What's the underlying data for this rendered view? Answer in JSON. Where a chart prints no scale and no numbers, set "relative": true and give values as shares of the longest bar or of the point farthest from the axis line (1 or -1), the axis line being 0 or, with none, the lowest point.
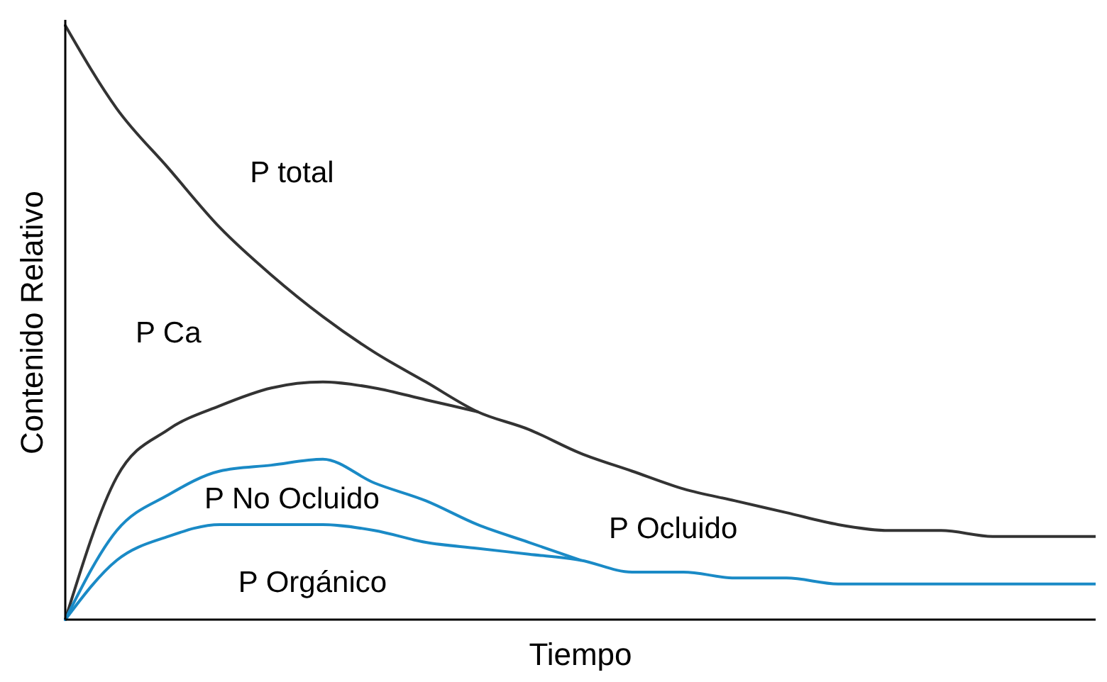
{
  "chart_data": {
    "type": "line",
    "relative": true,
    "xlabel": "Tiempo",
    "ylabel": "Contenido Relativo",
    "categories": [
      null,
      null,
      null,
      null,
      null,
      null,
      null,
      null,
      null,
      null,
      null,
      null,
      null,
      null,
      null,
      null,
      null,
      null,
      null,
      null,
      null
    ],
    "series": [
      {
        "color": "#333333",
        "values": [
          1.0,
          0.86,
          0.76,
          0.66,
          0.58,
          0.51,
          0.45,
          0.4,
          0.35,
          0.32,
          0.28,
          0.25,
          0.22,
          0.2,
          0.18,
          0.16,
          0.15,
          0.15,
          0.14,
          0.14,
          0.14
        ]
      },
      {
        "color": "#333333",
        "values": [
          0,
          0.24,
          0.32,
          0.36,
          0.39,
          0.4,
          0.39,
          0.37,
          0.35,
          null,
          null,
          null,
          null,
          null,
          null,
          null,
          null,
          null,
          null,
          null,
          null
        ]
      },
      {
        "color": "#1a8ac6",
        "values": [
          0,
          0.15,
          0.21,
          0.25,
          0.26,
          0.27,
          0.23,
          0.2,
          0.16,
          0.13,
          0.1,
          null,
          null,
          null,
          null,
          null,
          null,
          null,
          null,
          null,
          null
        ]
      },
      {
        "color": "#1a8ac6",
        "values": [
          0,
          0.1,
          0.14,
          0.16,
          0.16,
          0.16,
          0.15,
          0.13,
          0.12,
          0.11,
          0.1,
          0.08,
          0.08,
          0.07,
          0.07,
          0.06,
          0.06,
          0.06,
          0.06,
          0.06,
          0.06
        ]
      }
    ],
    "annotations": [
      "P total",
      "P Ca",
      "P No Ocluido",
      "P Ocluido",
      "P Orgánico"
    ],
    "marker": "none",
    "line_style": "solid"
  }
}
